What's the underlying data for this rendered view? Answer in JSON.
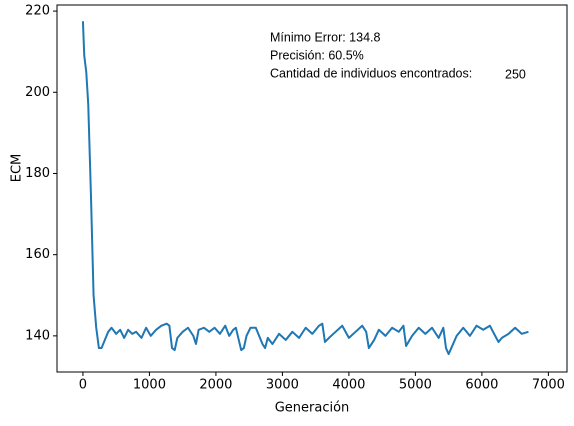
{
  "chart_data": {
    "type": "line",
    "x_label": "Generación",
    "y_label": "ECM",
    "annotations": [
      "Mínimo Error: 134.8",
      "Precisión: 60.5%",
      "Cantidad de individuos encontrados:",
      "250"
    ],
    "x": [
      0,
      20,
      50,
      80,
      120,
      160,
      200,
      240,
      280,
      330,
      380,
      430,
      500,
      560,
      620,
      680,
      740,
      800,
      880,
      950,
      1020,
      1100,
      1180,
      1260,
      1300,
      1340,
      1380,
      1420,
      1500,
      1580,
      1660,
      1700,
      1740,
      1820,
      1900,
      1980,
      2060,
      2140,
      2200,
      2260,
      2300,
      2380,
      2420,
      2460,
      2520,
      2600,
      2700,
      2740,
      2780,
      2850,
      2950,
      3050,
      3150,
      3250,
      3350,
      3450,
      3550,
      3600,
      3640,
      3700,
      3800,
      3900,
      4000,
      4100,
      4200,
      4260,
      4300,
      4380,
      4450,
      4550,
      4650,
      4750,
      4820,
      4860,
      4950,
      5050,
      5150,
      5250,
      5350,
      5420,
      5460,
      5500,
      5540,
      5620,
      5720,
      5820,
      5920,
      6020,
      6120,
      6200,
      6250,
      6300,
      6400,
      6500,
      6600,
      6700
    ],
    "series": [
      {
        "color": "#1f77b4",
        "values": [
          217.5,
          209,
          205,
          197,
          175,
          150,
          142,
          137,
          137,
          139,
          141,
          142,
          140.5,
          141.5,
          139.5,
          141.5,
          140.5,
          141,
          139.5,
          142,
          140,
          141.5,
          142.5,
          143,
          142.5,
          137,
          136.5,
          139.5,
          141,
          142,
          140,
          138,
          141.5,
          142,
          141,
          142,
          140.5,
          142.5,
          140,
          141.5,
          142,
          136.5,
          137,
          140,
          142,
          142,
          138,
          137,
          139.5,
          138,
          140.5,
          139,
          141,
          139.5,
          142,
          140.5,
          142.5,
          143,
          138.5,
          139.5,
          141,
          142.5,
          139.5,
          141,
          142.5,
          141,
          137,
          139,
          141.5,
          140,
          142,
          141,
          142.5,
          137.5,
          140,
          142,
          140.5,
          142,
          139.5,
          142,
          137,
          135.5,
          137,
          140,
          142,
          140,
          142.5,
          141.5,
          142.5,
          140,
          138.5,
          139.5,
          140.5,
          142,
          140.5,
          141
        ]
      }
    ],
    "xlim": [
      -390,
      7280
    ],
    "ylim": [
      131.1,
      221.5
    ],
    "xticks": [
      0,
      1000,
      2000,
      3000,
      4000,
      5000,
      6000,
      7000
    ],
    "yticks": [
      140,
      160,
      180,
      200,
      220
    ]
  }
}
